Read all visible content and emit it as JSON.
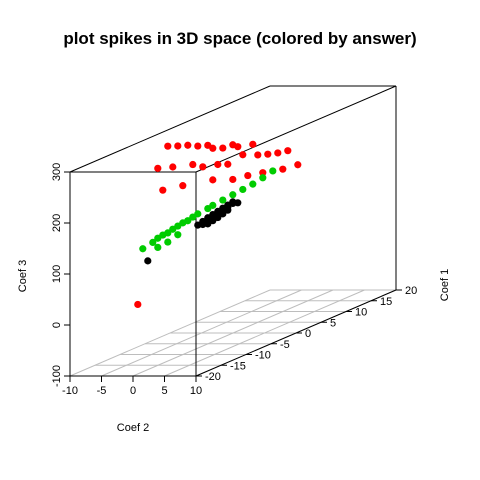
{
  "chart_data": {
    "type": "scatter",
    "title": "plot spikes in  3D space (colored by answer)",
    "axes": {
      "coef1": {
        "label": "Coef 1",
        "ticks": [
          "-20",
          "-15",
          "-10",
          "-5",
          "0",
          "5",
          "10",
          "15",
          "20"
        ]
      },
      "coef2": {
        "label": "Coef 2",
        "ticks": [
          "-10",
          "-5",
          "0",
          "5",
          "10"
        ]
      },
      "coef3": {
        "label": "Coef 3",
        "ticks": [
          "-100",
          "0",
          "100",
          "200",
          "300"
        ]
      }
    },
    "grid": true,
    "series": [
      {
        "color": "#ff0000",
        "points": [
          [
            -8,
            4,
            300
          ],
          [
            -6,
            4,
            292
          ],
          [
            -4,
            4,
            285
          ],
          [
            -2,
            4,
            275
          ],
          [
            0,
            4,
            268
          ],
          [
            1,
            4,
            258
          ],
          [
            3,
            4,
            250
          ],
          [
            5,
            4,
            248
          ],
          [
            6,
            4,
            240
          ],
          [
            9,
            4,
            232
          ],
          [
            -10,
            4,
            265
          ],
          [
            -7,
            4,
            255
          ],
          [
            -3,
            4,
            243
          ],
          [
            -1,
            4,
            230
          ],
          [
            2,
            4,
            222
          ],
          [
            4,
            4,
            214
          ],
          [
            7,
            4,
            220
          ],
          [
            10,
            4,
            207
          ],
          [
            12,
            4,
            200
          ],
          [
            14,
            4,
            194
          ],
          [
            16,
            4,
            190
          ],
          [
            -9,
            4,
            218
          ],
          [
            -5,
            4,
            210
          ],
          [
            1,
            4,
            196
          ],
          [
            5,
            4,
            180
          ],
          [
            8,
            4,
            175
          ],
          [
            11,
            4,
            168
          ],
          [
            15,
            4,
            158
          ],
          [
            18,
            4,
            154
          ],
          [
            -14,
            4,
            15
          ]
        ]
      },
      {
        "color": "#000000",
        "points": [
          [
            -2,
            4,
            120
          ],
          [
            -1,
            4,
            123
          ],
          [
            0,
            4,
            126
          ],
          [
            1,
            4,
            128
          ],
          [
            2,
            4,
            130
          ],
          [
            3,
            4,
            132
          ],
          [
            4,
            4,
            134
          ],
          [
            5,
            4,
            136
          ],
          [
            -1,
            4,
            117
          ],
          [
            0,
            4,
            119
          ],
          [
            1,
            4,
            121
          ],
          [
            2,
            4,
            124
          ],
          [
            3,
            4,
            127
          ],
          [
            4,
            4,
            130
          ],
          [
            5,
            4,
            133
          ],
          [
            0,
            4,
            114
          ],
          [
            1,
            4,
            116
          ],
          [
            2,
            4,
            118
          ],
          [
            3,
            4,
            121
          ],
          [
            4,
            4,
            124
          ],
          [
            6,
            4,
            130
          ],
          [
            -12,
            4,
            92
          ]
        ]
      },
      {
        "color": "#00cc00",
        "points": [
          [
            -13,
            4,
            120
          ],
          [
            -11,
            4,
            124
          ],
          [
            -10,
            4,
            128
          ],
          [
            -9,
            4,
            130
          ],
          [
            -8,
            4,
            130
          ],
          [
            -7,
            4,
            133
          ],
          [
            -6,
            4,
            135
          ],
          [
            -5,
            4,
            137
          ],
          [
            -4,
            4,
            137
          ],
          [
            -3,
            4,
            140
          ],
          [
            -2,
            4,
            142
          ],
          [
            0,
            4,
            144
          ],
          [
            1,
            4,
            146
          ],
          [
            3,
            4,
            148
          ],
          [
            5,
            4,
            150
          ],
          [
            7,
            4,
            152
          ],
          [
            9,
            4,
            154
          ],
          [
            11,
            4,
            158
          ],
          [
            13,
            4,
            163
          ],
          [
            -8,
            4,
            112
          ],
          [
            -10,
            4,
            110
          ],
          [
            -6,
            4,
            118
          ]
        ]
      }
    ]
  }
}
